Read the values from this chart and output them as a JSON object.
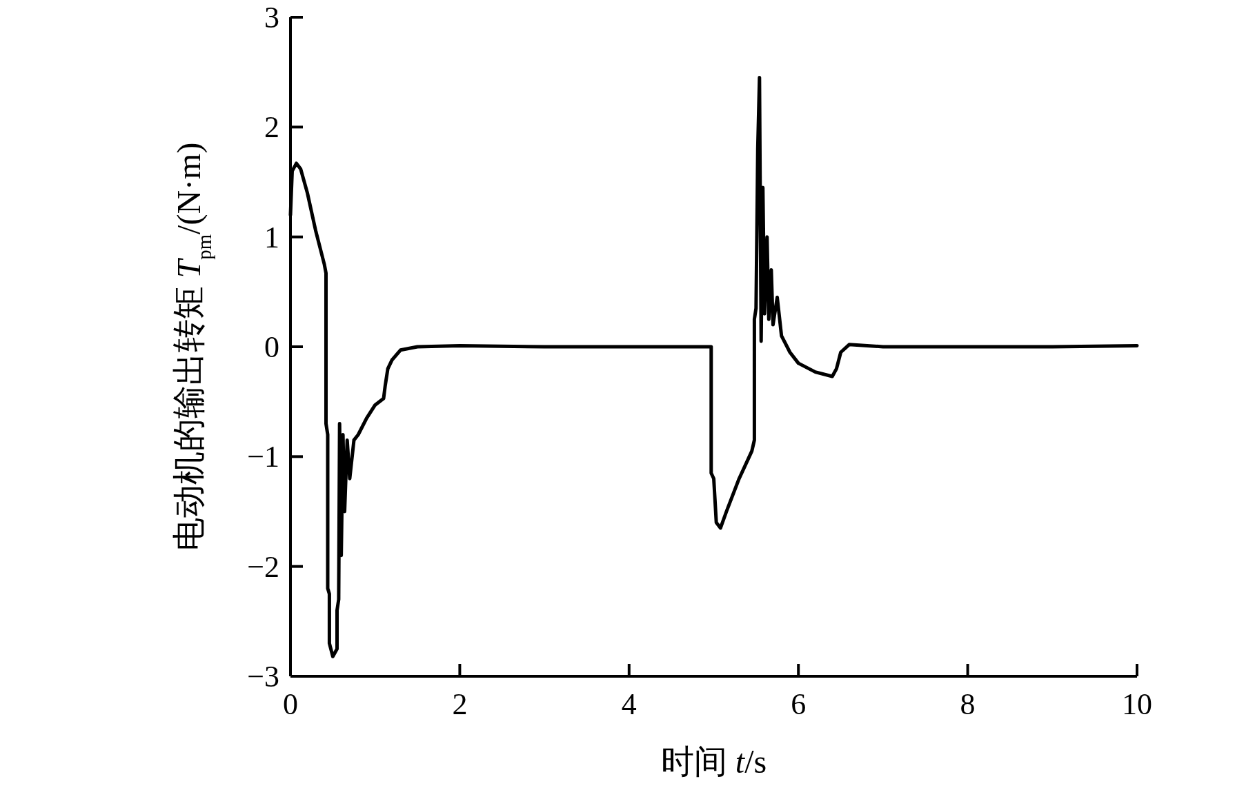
{
  "chart_data": {
    "type": "line",
    "xlabel": "时间 *t*/s",
    "ylabel": "电动机的输出转矩 *T*$_{pm}$/(N·m)",
    "xlim": [
      0,
      10
    ],
    "ylim": [
      -3,
      3
    ],
    "xticks": [
      0,
      2,
      4,
      6,
      8,
      10
    ],
    "yticks": [
      {
        "value": -3,
        "label": "−3"
      },
      {
        "value": -2,
        "label": "−2"
      },
      {
        "value": -1,
        "label": "−1"
      },
      0,
      1,
      2,
      3
    ],
    "grid": false,
    "marker": "none",
    "line_style": "solid",
    "series": [
      {
        "color": "#000000",
        "x": [
          0,
          0.02,
          0.07,
          0.12,
          0.2,
          0.3,
          0.4,
          0.42,
          0.42,
          0.44,
          0.44,
          0.46,
          0.46,
          0.5,
          0.55,
          0.55,
          0.57,
          0.58,
          0.6,
          0.62,
          0.64,
          0.67,
          0.7,
          0.75,
          0.8,
          0.9,
          1.0,
          1.1,
          1.12,
          1.15,
          1.2,
          1.3,
          1.5,
          2,
          3,
          4.97,
          4.97,
          5.0,
          5.03,
          5.08,
          5.15,
          5.3,
          5.45,
          5.48,
          5.48,
          5.5,
          5.52,
          5.54,
          5.56,
          5.58,
          5.6,
          5.63,
          5.65,
          5.68,
          5.7,
          5.75,
          5.8,
          5.9,
          6.0,
          6.2,
          6.4,
          6.45,
          6.5,
          6.6,
          7,
          9,
          10
        ],
        "values": [
          1.2,
          1.6,
          1.67,
          1.62,
          1.4,
          1.05,
          0.75,
          0.67,
          -0.7,
          -0.8,
          -2.2,
          -2.25,
          -2.7,
          -2.82,
          -2.75,
          -2.4,
          -2.3,
          -0.7,
          -1.9,
          -0.8,
          -1.5,
          -0.85,
          -1.2,
          -0.85,
          -0.8,
          -0.65,
          -0.53,
          -0.47,
          -0.35,
          -0.2,
          -0.12,
          -0.03,
          0,
          0.01,
          0,
          0,
          -1.15,
          -1.2,
          -1.6,
          -1.65,
          -1.5,
          -1.2,
          -0.95,
          -0.85,
          0.25,
          0.35,
          1.8,
          2.45,
          0.05,
          1.45,
          0.3,
          1.0,
          0.25,
          0.7,
          0.2,
          0.45,
          0.1,
          -0.05,
          -0.15,
          -0.23,
          -0.27,
          -0.2,
          -0.05,
          0.02,
          0,
          0,
          0.01
        ]
      }
    ]
  }
}
